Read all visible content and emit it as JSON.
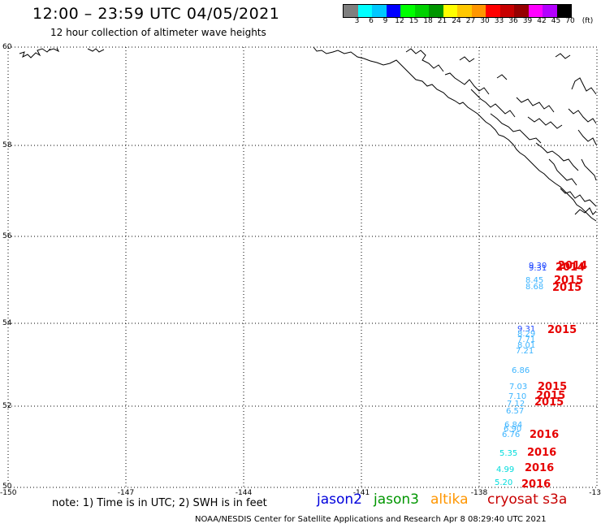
{
  "header": {
    "title": "12:00 – 23:59 UTC 04/05/2021",
    "subtitle": "12 hour collection of altimeter wave heights"
  },
  "legend": {
    "colors": [
      "#7f7f7f",
      "#00ffff",
      "#00c8ff",
      "#0000ff",
      "#00ff00",
      "#00d200",
      "#009600",
      "#ffff00",
      "#ffc800",
      "#ff9600",
      "#ff0000",
      "#c80000",
      "#960000",
      "#ff00ff",
      "#b400ff",
      "#000000"
    ],
    "labels": [
      "3",
      "6",
      "9",
      "12",
      "15",
      "18",
      "21",
      "24",
      "27",
      "30",
      "33",
      "36",
      "39",
      "42",
      "45",
      "70",
      "(ft)"
    ]
  },
  "map": {
    "lon_labels": [
      "-150",
      "-147",
      "-144",
      "-141",
      "-138",
      "-13"
    ],
    "lat_labels": [
      "60",
      "58",
      "56",
      "54",
      "52",
      "50"
    ],
    "observations": [
      {
        "text": "9.30",
        "color": "#1e46ff"
      },
      {
        "text": "9.31",
        "color": "#1e46ff"
      },
      {
        "text": "2014",
        "color": "#e60000"
      },
      {
        "text": "2014",
        "color": "#e60000"
      },
      {
        "text": "8.45",
        "color": "#3cb4ff"
      },
      {
        "text": "2015",
        "color": "#e60000"
      },
      {
        "text": "8.68",
        "color": "#3cb4ff"
      },
      {
        "text": "2015",
        "color": "#e60000"
      },
      {
        "text": "9.31",
        "color": "#1e46ff"
      },
      {
        "text": "2015",
        "color": "#e60000"
      },
      {
        "text": "8.29",
        "color": "#3cb4ff"
      },
      {
        "text": "7.71",
        "color": "#3cb4ff"
      },
      {
        "text": "8.01",
        "color": "#3cb4ff"
      },
      {
        "text": "7.21",
        "color": "#3cb4ff"
      },
      {
        "text": "6.86",
        "color": "#3cb4ff"
      },
      {
        "text": "7.03",
        "color": "#3cb4ff"
      },
      {
        "text": "2015",
        "color": "#e60000"
      },
      {
        "text": "7.10",
        "color": "#3cb4ff"
      },
      {
        "text": "2015",
        "color": "#e60000"
      },
      {
        "text": "7.12",
        "color": "#3cb4ff"
      },
      {
        "text": "2015",
        "color": "#e60000"
      },
      {
        "text": "6.57",
        "color": "#3cb4ff"
      },
      {
        "text": "6.84",
        "color": "#3cb4ff"
      },
      {
        "text": "6.90",
        "color": "#3cb4ff"
      },
      {
        "text": "6.76",
        "color": "#3cb4ff"
      },
      {
        "text": "2016",
        "color": "#e60000"
      },
      {
        "text": "5.35",
        "color": "#00dcdc"
      },
      {
        "text": "2016",
        "color": "#e60000"
      },
      {
        "text": "4.99",
        "color": "#00dcdc"
      },
      {
        "text": "2016",
        "color": "#e60000"
      },
      {
        "text": "5.20",
        "color": "#00dcdc"
      },
      {
        "text": "2016",
        "color": "#e60000"
      }
    ]
  },
  "footer": {
    "note": "note: 1) Time is in UTC; 2) SWH is in feet",
    "satellites": [
      {
        "name": "jason2",
        "color": "#0000dc"
      },
      {
        "name": "jason3",
        "color": "#009600"
      },
      {
        "name": "altika",
        "color": "#ff9600"
      },
      {
        "name": "cryosat s3a",
        "color": "#c80000"
      }
    ],
    "credit": "NOAA/NESDIS Center for Satellite Applications and Research    Apr  8 08:29:40 UTC 2021"
  }
}
